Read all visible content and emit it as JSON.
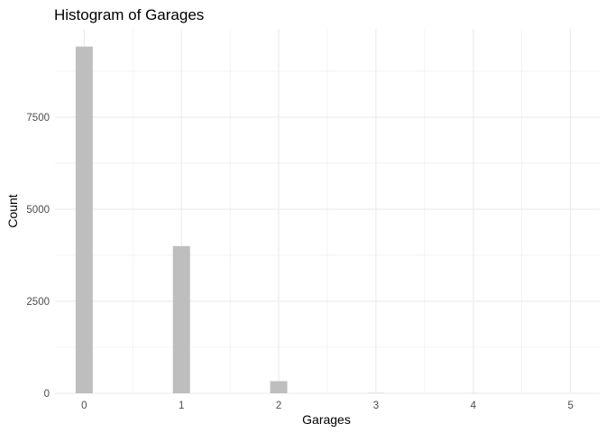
{
  "chart_data": {
    "type": "bar",
    "title": "Histogram of Garages",
    "xlabel": "Garages",
    "ylabel": "Count",
    "x": [
      0,
      1,
      2,
      3,
      4,
      5
    ],
    "values": [
      9420,
      4000,
      330,
      8,
      3,
      2
    ],
    "xlim": [
      -0.3,
      5.3
    ],
    "ylim": [
      0,
      9900
    ],
    "x_ticks": [
      0,
      1,
      2,
      3,
      4,
      5
    ],
    "y_ticks": [
      0,
      2500,
      5000,
      7500
    ],
    "bar_color": "#bebebe",
    "grid": true,
    "grid_color": "#ebebeb",
    "legend": "none"
  }
}
